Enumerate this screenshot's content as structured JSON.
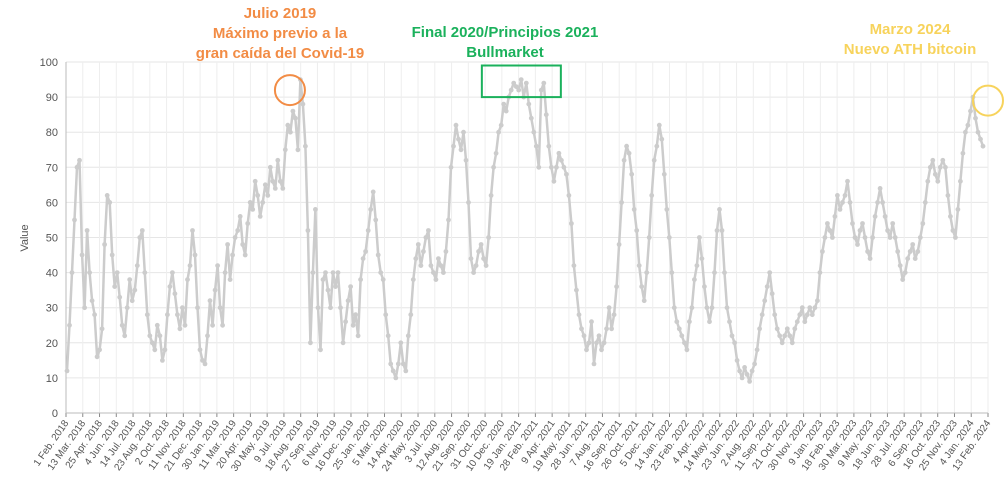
{
  "chart_data": {
    "type": "line",
    "title": "",
    "xlabel": "",
    "ylabel": "Value",
    "ylim": [
      0,
      100
    ],
    "yticks": [
      0,
      10,
      20,
      30,
      40,
      50,
      60,
      70,
      80,
      90,
      100
    ],
    "grid": true,
    "series_color": "#cccccc",
    "x_tick_labels": [
      "1 Feb. 2018",
      "13 Mar. 2018",
      "25 Apr. 2018",
      "4 Jun. 2018",
      "14 Jul. 2018",
      "23 Aug. 2018",
      "2 Oct. 2018",
      "11 Nov. 2018",
      "21 Dec. 2018",
      "30 Jan. 2019",
      "11 Mar. 2019",
      "20 Apr. 2019",
      "30 May. 2019",
      "9 Jul. 2019",
      "18 Aug. 2019",
      "27 Sep. 2019",
      "6 Nov. 2019",
      "16 Dec. 2019",
      "25 Jan. 2020",
      "5 Mar. 2020",
      "14 Apr. 2020",
      "24 May. 2020",
      "3 Jul. 2020",
      "12 Aug. 2020",
      "21 Sep. 2020",
      "31 Oct. 2020",
      "10 Dec. 2020",
      "19 Jan. 2021",
      "28 Feb. 2021",
      "9 Apr. 2021",
      "19 May. 2021",
      "28 Jun. 2021",
      "7 Aug. 2021",
      "16 Sep. 2021",
      "26 Oct. 2021",
      "5 Dec. 2021",
      "14 Jan. 2022",
      "23 Feb. 2022",
      "4 Apr. 2022",
      "14 May. 2022",
      "23 Jun. 2022",
      "2 Aug. 2022",
      "11 Sep. 2022",
      "21 Oct. 2022",
      "30 Nov. 2022",
      "9 Jan. 2023",
      "18 Feb. 2023",
      "30 Mar. 2023",
      "9 May. 2023",
      "18 Jun. 2023",
      "28 Jul. 2023",
      "6 Sep. 2023",
      "16 Oct. 2023",
      "25 Nov. 2023",
      "4 Jan. 2024",
      "13 Feb. 2024"
    ],
    "values": [
      12,
      25,
      40,
      55,
      70,
      72,
      45,
      30,
      52,
      40,
      32,
      28,
      16,
      18,
      24,
      48,
      62,
      60,
      45,
      36,
      40,
      33,
      25,
      22,
      30,
      38,
      32,
      35,
      42,
      50,
      52,
      40,
      28,
      22,
      20,
      18,
      25,
      22,
      15,
      18,
      28,
      36,
      40,
      34,
      28,
      24,
      30,
      25,
      38,
      42,
      52,
      45,
      30,
      18,
      15,
      14,
      22,
      32,
      25,
      35,
      42,
      30,
      25,
      40,
      48,
      38,
      45,
      50,
      52,
      56,
      48,
      45,
      54,
      60,
      58,
      66,
      62,
      56,
      60,
      65,
      62,
      70,
      66,
      64,
      72,
      66,
      64,
      75,
      82,
      80,
      86,
      84,
      75,
      95,
      88,
      76,
      52,
      20,
      40,
      58,
      30,
      18,
      38,
      40,
      35,
      30,
      40,
      36,
      40,
      30,
      20,
      26,
      32,
      36,
      25,
      28,
      22,
      38,
      44,
      46,
      52,
      58,
      63,
      55,
      45,
      40,
      38,
      28,
      22,
      14,
      12,
      10,
      14,
      20,
      14,
      12,
      22,
      28,
      38,
      44,
      48,
      42,
      46,
      50,
      52,
      42,
      40,
      38,
      44,
      42,
      40,
      46,
      55,
      70,
      76,
      82,
      78,
      75,
      80,
      72,
      60,
      44,
      40,
      42,
      46,
      48,
      44,
      42,
      50,
      62,
      70,
      74,
      80,
      82,
      88,
      86,
      90,
      92,
      94,
      93,
      92,
      95,
      90,
      94,
      88,
      84,
      80,
      76,
      70,
      92,
      94,
      85,
      76,
      70,
      66,
      70,
      74,
      72,
      70,
      68,
      62,
      54,
      42,
      35,
      28,
      24,
      22,
      18,
      20,
      26,
      14,
      20,
      22,
      18,
      20,
      24,
      30,
      24,
      28,
      36,
      48,
      60,
      72,
      76,
      74,
      68,
      58,
      52,
      42,
      36,
      32,
      40,
      50,
      62,
      72,
      76,
      82,
      78,
      68,
      58,
      50,
      40,
      30,
      26,
      24,
      22,
      20,
      18,
      26,
      30,
      38,
      42,
      50,
      44,
      36,
      30,
      26,
      30,
      40,
      52,
      58,
      52,
      40,
      30,
      26,
      22,
      20,
      15,
      12,
      10,
      13,
      11,
      9,
      12,
      14,
      18,
      24,
      28,
      32,
      36,
      40,
      34,
      28,
      24,
      22,
      20,
      22,
      24,
      22,
      20,
      24,
      26,
      28,
      30,
      26,
      28,
      30,
      28,
      30,
      32,
      40,
      46,
      50,
      54,
      52,
      50,
      56,
      62,
      58,
      60,
      62,
      66,
      60,
      54,
      50,
      48,
      52,
      54,
      50,
      46,
      44,
      50,
      56,
      60,
      64,
      60,
      56,
      52,
      50,
      54,
      50,
      46,
      42,
      38,
      40,
      44,
      46,
      48,
      44,
      46,
      50,
      54,
      60,
      66,
      70,
      72,
      68,
      66,
      70,
      72,
      70,
      62,
      56,
      52,
      50,
      58,
      66,
      74,
      80,
      82,
      86,
      90,
      84,
      80,
      78,
      76
    ]
  },
  "annotations": [
    {
      "id": "julio-2019",
      "lines": [
        "Julio 2019",
        "Máximo previo a  la",
        "gran caída del Covid-19"
      ],
      "color": "#f28c45",
      "marker": "circle",
      "x_label": "9 Jul. 2019"
    },
    {
      "id": "bullmarket",
      "lines": [
        "Final 2020/Principios 2021",
        "Bullmarket"
      ],
      "color": "#1bb15c",
      "marker": "rect",
      "x_label": "10 Dec. 2020"
    },
    {
      "id": "marzo-2024",
      "lines": [
        "Marzo 2024",
        "Nuevo ATH bitcoin"
      ],
      "color": "#f7d35c",
      "marker": "circle",
      "x_label": "13 Feb. 2024"
    }
  ]
}
